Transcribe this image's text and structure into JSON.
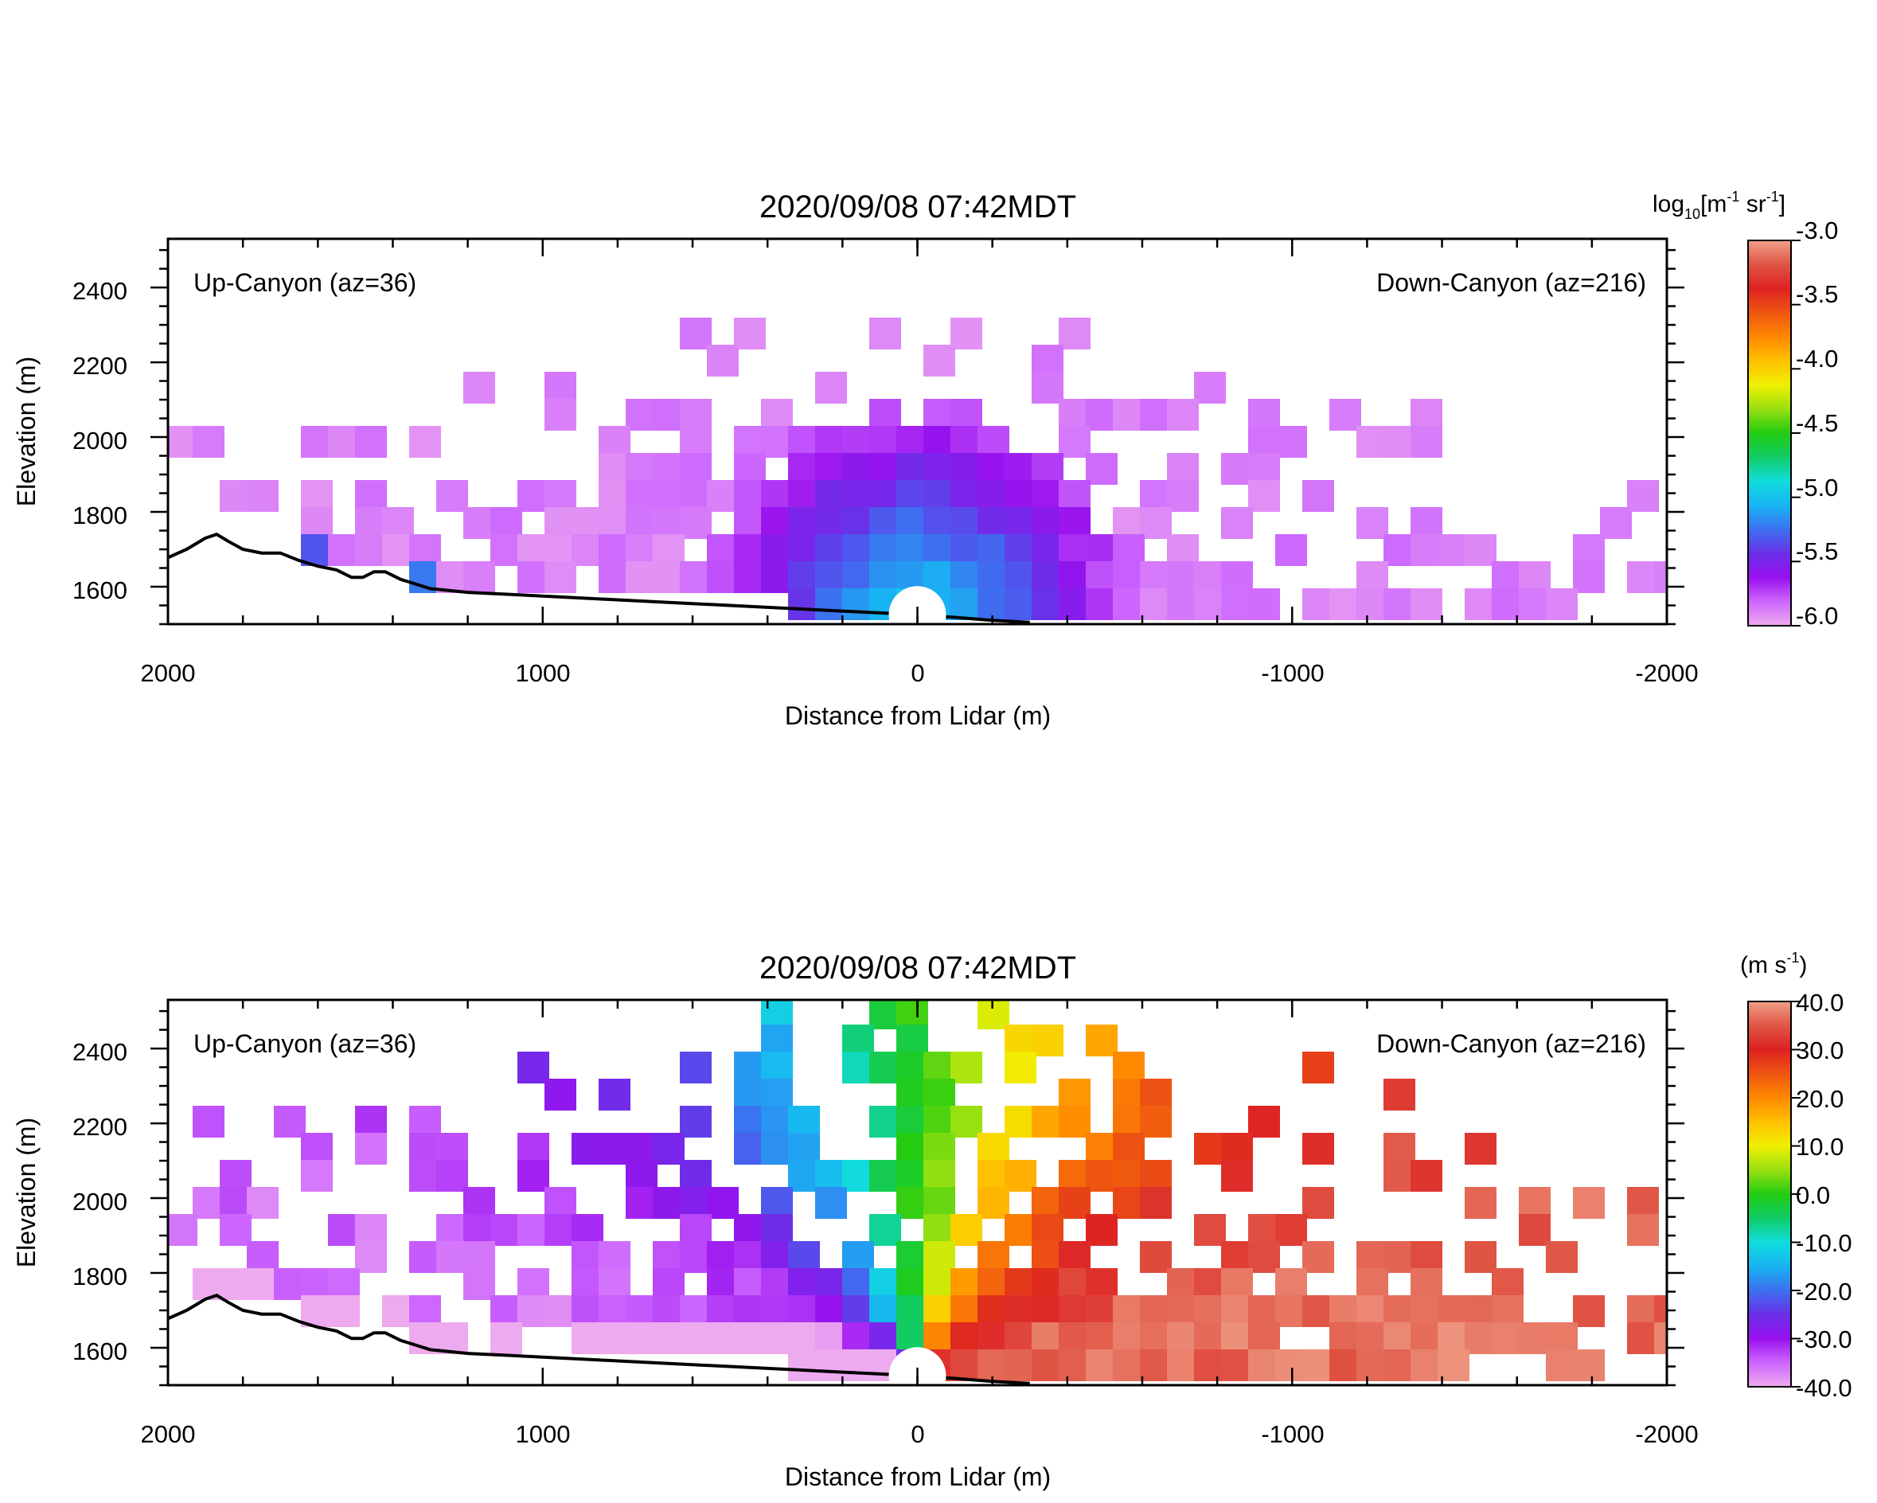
{
  "chart_data": [
    {
      "type": "heatmap",
      "title": "2020/09/08 07:42MDT",
      "xlabel": "Distance from Lidar (m)",
      "ylabel": "Elevation (m)",
      "xlim": [
        2000,
        -2000
      ],
      "ylim": [
        1500,
        2530
      ],
      "x_ticks": [
        2000,
        1000,
        0,
        -1000,
        -2000
      ],
      "x_tick_labels": [
        "2000",
        "1000",
        "0",
        "-1000",
        "-2000"
      ],
      "y_ticks": [
        1600,
        1800,
        2000,
        2200,
        2400
      ],
      "y_tick_labels": [
        "1600",
        "1800",
        "2000",
        "2200",
        "2400"
      ],
      "annotations": [
        "Up-Canyon (az=36)",
        "Down-Canyon (az=216)"
      ],
      "colorbar": {
        "label_parts": [
          "log",
          "10",
          "[m",
          "-1",
          " sr",
          "-1",
          "]"
        ],
        "range": [
          -6.0,
          -3.0
        ],
        "tick_values": [
          -3.0,
          -3.5,
          -4.0,
          -4.5,
          -5.0,
          -5.5,
          -6.0
        ],
        "tick_labels": [
          "-3.0",
          "-3.5",
          "-4.0",
          "-4.5",
          "-5.0",
          "-5.5",
          "-6.0"
        ],
        "colormap": [
          "#eeaaee",
          "#cc66ff",
          "#9911ee",
          "#6a30e8",
          "#3d70f0",
          "#18b4f2",
          "#11dddd",
          "#11cc66",
          "#22cc11",
          "#99e011",
          "#f0f000",
          "#ffc000",
          "#ff8800",
          "#ee5511",
          "#dd2222",
          "#e05545",
          "#f0a088"
        ]
      },
      "field": "backscatter",
      "terrain_profile": {
        "x": [
          2000,
          1950,
          1900,
          1870,
          1840,
          1800,
          1750,
          1700,
          1650,
          1600,
          1550,
          1510,
          1480,
          1450,
          1420,
          1380,
          1300,
          1200,
          1100,
          1000,
          800,
          600,
          400,
          200,
          100,
          0,
          -100,
          -200,
          -300
        ],
        "elevation": [
          1678,
          1700,
          1730,
          1740,
          1722,
          1700,
          1690,
          1690,
          1670,
          1655,
          1645,
          1625,
          1625,
          1640,
          1640,
          1620,
          1595,
          1585,
          1580,
          1575,
          1565,
          1555,
          1545,
          1535,
          1530,
          1525,
          1518,
          1510,
          1505
        ]
      }
    },
    {
      "type": "heatmap",
      "title": "2020/09/08 07:42MDT",
      "xlabel": "Distance from Lidar (m)",
      "ylabel": "Elevation (m)",
      "xlim": [
        2000,
        -2000
      ],
      "ylim": [
        1500,
        2530
      ],
      "x_ticks": [
        2000,
        1000,
        0,
        -1000,
        -2000
      ],
      "x_tick_labels": [
        "2000",
        "1000",
        "0",
        "-1000",
        "-2000"
      ],
      "y_ticks": [
        1600,
        1800,
        2000,
        2200,
        2400
      ],
      "y_tick_labels": [
        "1600",
        "1800",
        "2000",
        "2200",
        "2400"
      ],
      "annotations": [
        "Up-Canyon (az=36)",
        "Down-Canyon (az=216)"
      ],
      "colorbar": {
        "label_parts": [
          "(m s",
          "-1",
          ")"
        ],
        "range": [
          -40.0,
          40.0
        ],
        "tick_values": [
          40.0,
          30.0,
          20.0,
          10.0,
          0.0,
          -10.0,
          -20.0,
          -30.0,
          -40.0
        ],
        "tick_labels": [
          "40.0",
          "30.0",
          "20.0",
          "10.0",
          "0.0",
          "-10.0",
          "-20.0",
          "-30.0",
          "-40.0"
        ],
        "colormap": [
          "#eeaaee",
          "#cc66ff",
          "#9911ee",
          "#6a30e8",
          "#3d70f0",
          "#18b4f2",
          "#11dddd",
          "#11cc66",
          "#22cc11",
          "#99e011",
          "#f0f000",
          "#ffc000",
          "#ff8800",
          "#ee5511",
          "#dd2222",
          "#e05545",
          "#f0a088"
        ]
      },
      "field": "radial_velocity",
      "terrain_profile": {
        "x": [
          2000,
          1950,
          1900,
          1870,
          1840,
          1800,
          1750,
          1700,
          1650,
          1600,
          1550,
          1510,
          1480,
          1450,
          1420,
          1380,
          1300,
          1200,
          1100,
          1000,
          800,
          600,
          400,
          200,
          100,
          0,
          -100,
          -200,
          -300
        ],
        "elevation": [
          1678,
          1700,
          1730,
          1740,
          1722,
          1700,
          1690,
          1690,
          1670,
          1655,
          1645,
          1625,
          1625,
          1640,
          1640,
          1620,
          1595,
          1585,
          1580,
          1575,
          1565,
          1555,
          1545,
          1535,
          1530,
          1525,
          1518,
          1510,
          1505
        ]
      }
    }
  ]
}
